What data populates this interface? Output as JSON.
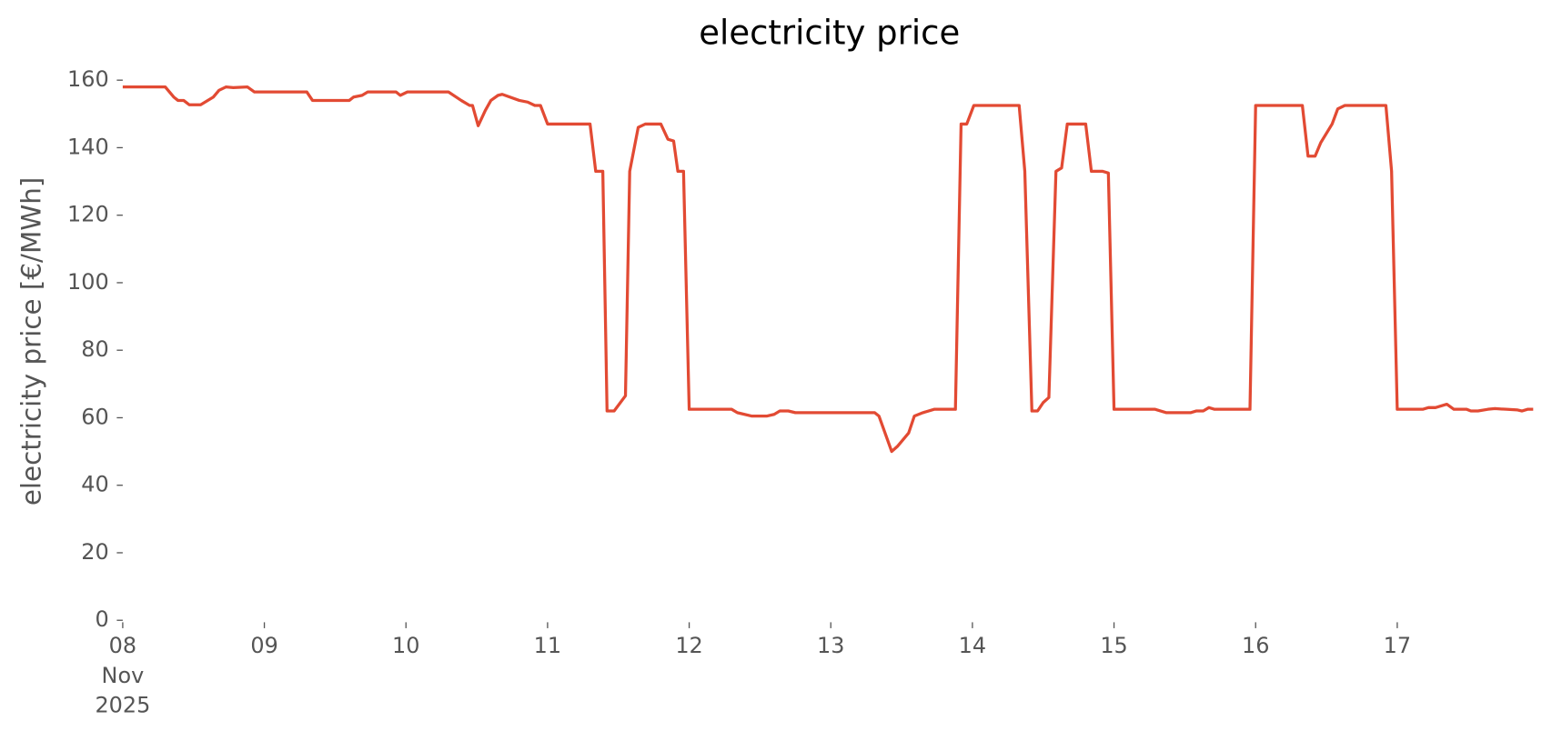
{
  "chart_data": {
    "type": "line",
    "title": "electricity price",
    "y_label": "electricity price [€/MWh]",
    "color": "#e24a33",
    "x": [
      8.0,
      8.3,
      8.36,
      8.39,
      8.43,
      8.47,
      8.55,
      8.64,
      8.68,
      8.73,
      8.78,
      8.88,
      8.93,
      9.3,
      9.34,
      9.6,
      9.63,
      9.69,
      9.73,
      9.93,
      9.96,
      10.01,
      10.3,
      10.39,
      10.45,
      10.47,
      10.51,
      10.56,
      10.6,
      10.65,
      10.68,
      10.8,
      10.86,
      10.91,
      10.95,
      11.0,
      11.3,
      11.34,
      11.39,
      11.42,
      11.47,
      11.55,
      11.58,
      11.64,
      11.69,
      11.8,
      11.85,
      11.89,
      11.92,
      11.96,
      12.0,
      12.3,
      12.34,
      12.44,
      12.55,
      12.6,
      12.64,
      12.7,
      12.75,
      13.31,
      13.34,
      13.43,
      13.47,
      13.55,
      13.59,
      13.65,
      13.73,
      13.88,
      13.92,
      13.96,
      14.01,
      14.33,
      14.37,
      14.42,
      14.46,
      14.5,
      14.54,
      14.59,
      14.63,
      14.67,
      14.8,
      14.84,
      14.92,
      14.96,
      15.0,
      15.29,
      15.37,
      15.54,
      15.58,
      15.63,
      15.67,
      15.71,
      15.96,
      16.0,
      16.33,
      16.37,
      16.42,
      16.46,
      16.54,
      16.58,
      16.63,
      16.92,
      16.96,
      17.0,
      17.18,
      17.22,
      17.27,
      17.35,
      17.4,
      17.49,
      17.52,
      17.57,
      17.64,
      17.69,
      17.77,
      17.85,
      17.88,
      17.92,
      17.96
    ],
    "values": [
      158,
      158,
      155,
      154,
      154,
      152.7,
      152.7,
      155,
      157,
      158,
      157.8,
      158,
      156.5,
      156.5,
      154,
      154,
      155,
      155.5,
      156.5,
      156.5,
      155.5,
      156.5,
      156.5,
      154,
      152.5,
      152.5,
      146.5,
      151,
      154,
      155.5,
      155.8,
      154,
      153.5,
      152.5,
      152.5,
      147,
      147,
      133,
      133,
      62,
      62,
      66.5,
      133,
      146,
      147,
      147,
      142.5,
      142,
      133,
      133,
      62.5,
      62.5,
      61.5,
      60.5,
      60.5,
      61,
      62,
      62,
      61.5,
      61.5,
      60.5,
      50,
      51.5,
      55.5,
      60.5,
      61.5,
      62.5,
      62.5,
      147,
      147,
      152.5,
      152.5,
      133,
      62,
      62,
      64.5,
      66,
      133,
      134,
      147,
      147,
      133,
      133,
      132.5,
      62.5,
      62.5,
      61.5,
      61.5,
      62,
      62,
      63,
      62.5,
      62.5,
      152.5,
      152.5,
      137.5,
      137.5,
      141.5,
      147,
      151.5,
      152.5,
      152.5,
      133,
      62.5,
      62.5,
      63,
      63,
      64,
      62.5,
      62.5,
      62,
      62,
      62.5,
      62.7,
      62.5,
      62.3,
      62,
      62.5,
      62.5
    ],
    "xlim": [
      8,
      17.96
    ],
    "xticks": [
      {
        "value": 8,
        "label": "08\nNov\n2025"
      },
      {
        "value": 9,
        "label": "09"
      },
      {
        "value": 10,
        "label": "10"
      },
      {
        "value": 11,
        "label": "11"
      },
      {
        "value": 12,
        "label": "12"
      },
      {
        "value": 13,
        "label": "13"
      },
      {
        "value": 14,
        "label": "14"
      },
      {
        "value": 15,
        "label": "15"
      },
      {
        "value": 16,
        "label": "16"
      },
      {
        "value": 17,
        "label": "17"
      }
    ],
    "ylim": [
      0,
      160
    ],
    "yticks": [
      0,
      20,
      40,
      60,
      80,
      100,
      120,
      140,
      160
    ],
    "grid": false
  }
}
